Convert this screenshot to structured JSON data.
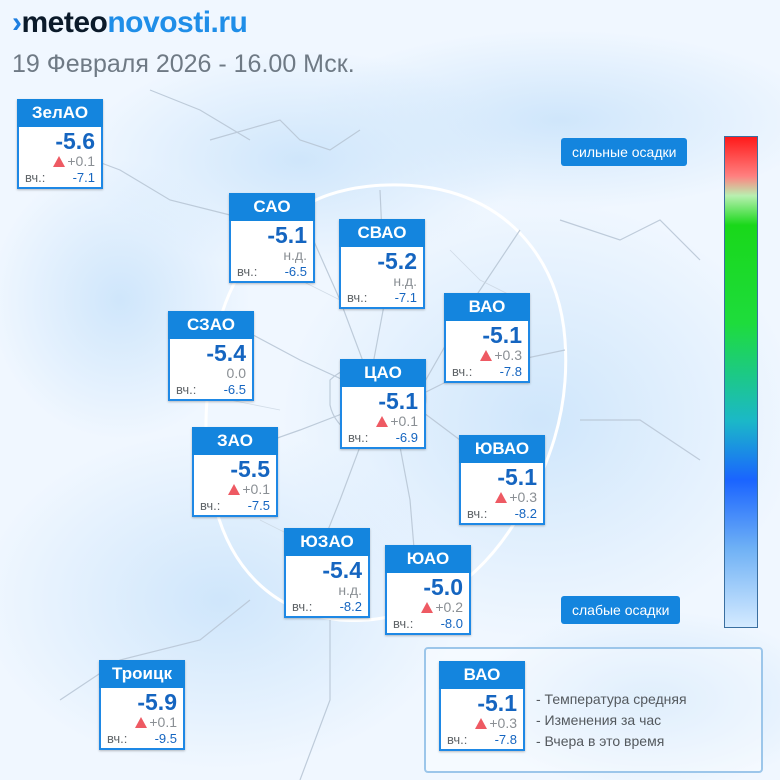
{
  "brand": {
    "part1": "meteo",
    "part2": "novosti.ru"
  },
  "date_line": "19 Февраля 2026 - 16.00 Мск.",
  "yesterday_label": "вч.:",
  "districts": {
    "zelao": {
      "name": "ЗелАО",
      "temp": "-5.6",
      "change": "+0.1",
      "yesterday": "-7.1"
    },
    "sao": {
      "name": "САО",
      "temp": "-5.1",
      "change": "н.д.",
      "yesterday": "-6.5"
    },
    "svao": {
      "name": "СВАО",
      "temp": "-5.2",
      "change": "н.д.",
      "yesterday": "-7.1"
    },
    "vao": {
      "name": "ВАО",
      "temp": "-5.1",
      "change": "+0.3",
      "yesterday": "-7.8"
    },
    "szao": {
      "name": "СЗАО",
      "temp": "-5.4",
      "change": "0.0",
      "yesterday": "-6.5"
    },
    "cao": {
      "name": "ЦАО",
      "temp": "-5.1",
      "change": "+0.1",
      "yesterday": "-6.9"
    },
    "zao": {
      "name": "ЗАО",
      "temp": "-5.5",
      "change": "+0.1",
      "yesterday": "-7.5"
    },
    "yuvao": {
      "name": "ЮВАО",
      "temp": "-5.1",
      "change": "+0.3",
      "yesterday": "-8.2"
    },
    "yuzao": {
      "name": "ЮЗАО",
      "temp": "-5.4",
      "change": "н.д.",
      "yesterday": "-8.2"
    },
    "yuao": {
      "name": "ЮАО",
      "temp": "-5.0",
      "change": "+0.2",
      "yesterday": "-8.0"
    },
    "troitsk": {
      "name": "Троицк",
      "temp": "-5.9",
      "change": "+0.1",
      "yesterday": "-9.5"
    }
  },
  "scale": {
    "top_label": "сильные осадки",
    "bottom_label": "слабые осадки"
  },
  "legend": {
    "sample": {
      "name": "ВАО",
      "temp": "-5.1",
      "change": "+0.3",
      "yesterday": "-7.8"
    },
    "line1": "- Температура средняя",
    "line2": "- Изменения за час",
    "line3": "- Вчера в это время"
  },
  "colors": {
    "accent": "#1485de",
    "temperature": "#1565c0",
    "rise_arrow": "#ee5a63"
  }
}
